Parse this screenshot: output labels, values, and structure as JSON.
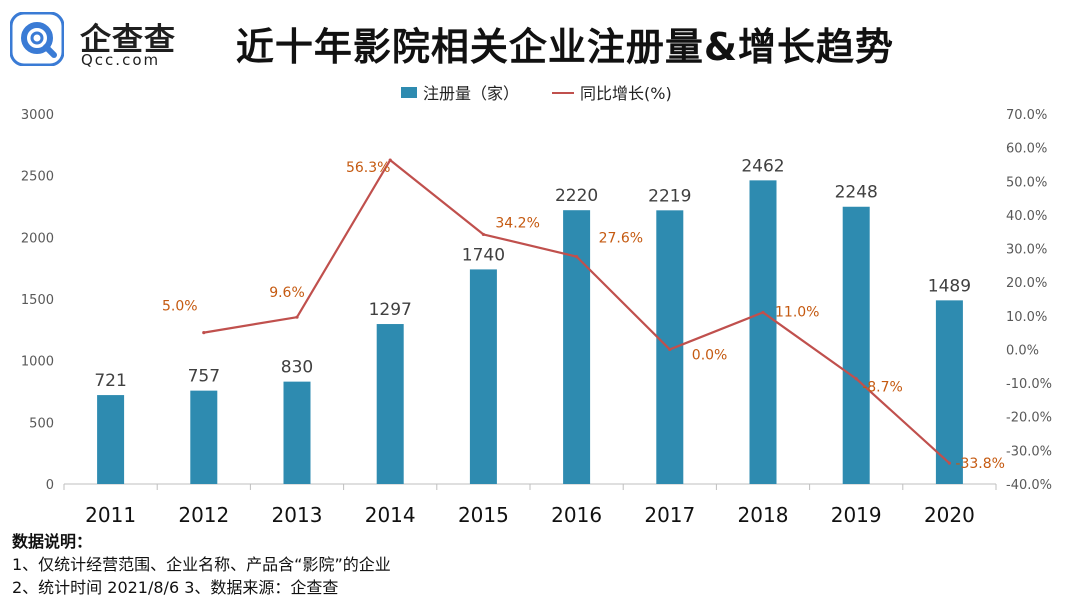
{
  "brand": {
    "name_cn": "企查查",
    "name_en": "Qcc.com"
  },
  "chart_data": {
    "type": "bar+line",
    "title": "近十年影院相关企业注册量&增长趋势",
    "categories": [
      "2011",
      "2012",
      "2013",
      "2014",
      "2015",
      "2016",
      "2017",
      "2018",
      "2019",
      "2020"
    ],
    "series": [
      {
        "name": "注册量（家）",
        "type": "bar",
        "axis": "left",
        "values": [
          721,
          757,
          830,
          1297,
          1740,
          2220,
          2219,
          2462,
          2248,
          1489
        ],
        "labels": [
          "721",
          "757",
          "830",
          "1297",
          "1740",
          "2220",
          "2219",
          "2462",
          "2248",
          "1489"
        ]
      },
      {
        "name": "同比增长(%)",
        "type": "line",
        "axis": "right",
        "values": [
          null,
          5.0,
          9.6,
          56.3,
          34.2,
          27.6,
          0.0,
          11.0,
          -8.7,
          -33.8
        ],
        "labels": [
          "",
          "5.0%",
          "9.6%",
          "56.3%",
          "34.2%",
          "27.6%",
          "0.0%",
          "11.0%",
          "-8.7%",
          "-33.8%"
        ]
      }
    ],
    "y_left": {
      "range": [
        0,
        3000
      ],
      "ticks": [
        "0",
        "500",
        "1000",
        "1500",
        "2000",
        "2500",
        "3000"
      ]
    },
    "y_right": {
      "range": [
        -40,
        70
      ],
      "ticks": [
        "-40.0%",
        "-30.0%",
        "-20.0%",
        "-10.0%",
        "0.0%",
        "10.0%",
        "20.0%",
        "30.0%",
        "40.0%",
        "50.0%",
        "60.0%",
        "70.0%"
      ]
    },
    "legend_position": "top-center",
    "colors": {
      "bar": "#2e8bb0",
      "line": "#c0504d",
      "line_label": "#c55a11"
    }
  },
  "notes": {
    "header": "数据说明：",
    "lines": [
      "1、仅统计经营范围、企业名称、产品含“影院”的企业",
      "2、统计时间 2021/8/6    3、数据来源：企查查"
    ]
  }
}
